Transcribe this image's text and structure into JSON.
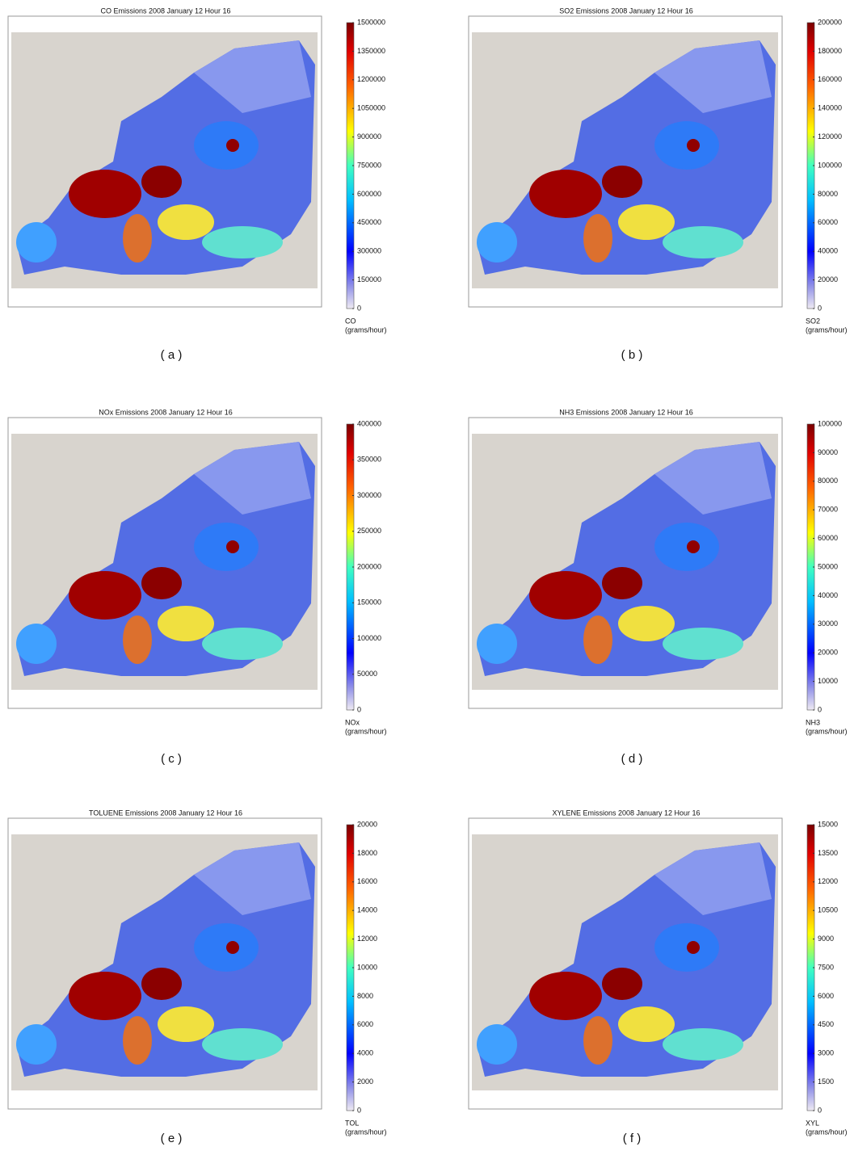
{
  "panels": [
    {
      "title": "CO Emissions 2008 January 12 Hour 16",
      "clim": [
        0,
        1500000
      ],
      "colorbar_ticks": [
        0,
        150000,
        300000,
        450000,
        600000,
        750000,
        900000,
        1050000,
        1200000,
        1350000,
        1500000
      ],
      "colorbar_label": "CO",
      "unit": "(grams/hour)",
      "caption": "( a )"
    },
    {
      "title": "SO2 Emissions 2008 January 12 Hour 16",
      "clim": [
        0,
        200000
      ],
      "colorbar_ticks": [
        0,
        20000,
        40000,
        60000,
        80000,
        100000,
        120000,
        140000,
        160000,
        180000,
        200000
      ],
      "colorbar_label": "SO2",
      "unit": "(grams/hour)",
      "caption": "( b )"
    },
    {
      "title": "NOx Emissions 2008 January 12 Hour 16",
      "clim": [
        0,
        400000
      ],
      "colorbar_ticks": [
        0,
        50000,
        100000,
        150000,
        200000,
        250000,
        300000,
        350000,
        400000
      ],
      "colorbar_label": "NOx",
      "unit": "(grams/hour)",
      "caption": "( c )"
    },
    {
      "title": "NH3 Emissions 2008 January 12 Hour 16",
      "clim": [
        0,
        100000
      ],
      "colorbar_ticks": [
        0,
        10000,
        20000,
        30000,
        40000,
        50000,
        60000,
        70000,
        80000,
        90000,
        100000
      ],
      "colorbar_label": "NH3",
      "unit": "(grams/hour)",
      "caption": "( d )"
    },
    {
      "title": "TOLUENE Emissions 2008 January 12 Hour 16",
      "clim": [
        0,
        20000
      ],
      "colorbar_ticks": [
        0,
        2000,
        4000,
        6000,
        8000,
        10000,
        12000,
        14000,
        16000,
        18000,
        20000
      ],
      "colorbar_label": "TOL",
      "unit": "(grams/hour)",
      "caption": "( e )"
    },
    {
      "title": "XYLENE Emissions 2008 January 12 Hour 16",
      "clim": [
        0,
        15000
      ],
      "colorbar_ticks": [
        0,
        1500,
        3000,
        4500,
        6000,
        7500,
        9000,
        10500,
        12000,
        13500,
        15000
      ],
      "colorbar_label": "XYL",
      "unit": "(grams/hour)",
      "caption": "( f )"
    }
  ]
}
